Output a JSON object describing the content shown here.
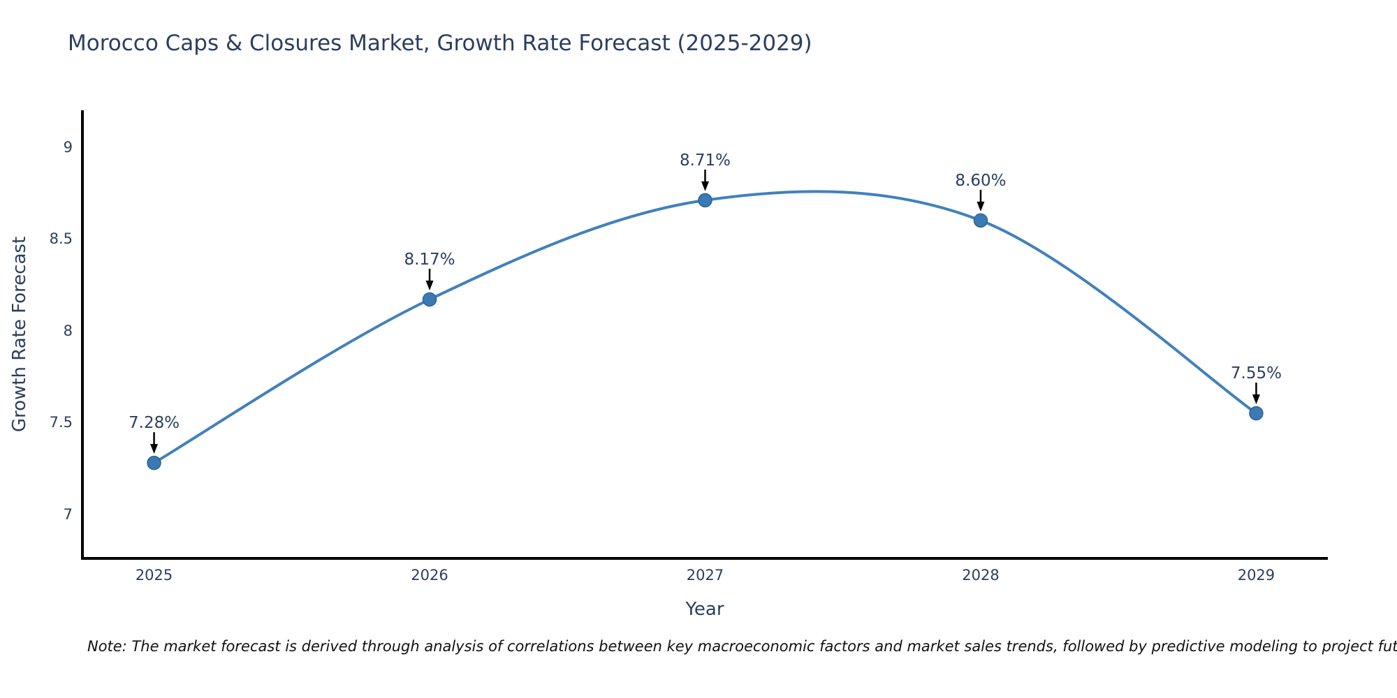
{
  "figure": {
    "note": "Note: The market forecast is derived through analysis of correlations between key macroeconomic factors and market sales trends, followed by predictive modeling to project future sales"
  },
  "chart_data": {
    "type": "line",
    "title": "Morocco Caps & Closures Market, Growth Rate Forecast (2025-2029)",
    "xlabel": "Year",
    "ylabel": "Growth Rate Forecast",
    "x": [
      2025,
      2026,
      2027,
      2028,
      2029
    ],
    "values": [
      7.28,
      8.17,
      8.71,
      8.6,
      7.55
    ],
    "point_labels": [
      "7.28%",
      "8.17%",
      "8.71%",
      "8.60%",
      "7.55%"
    ],
    "xtick_labels": [
      "2025",
      "2026",
      "2027",
      "2028",
      "2029"
    ],
    "yticks": [
      7,
      7.5,
      8,
      8.5,
      9
    ],
    "ytick_labels": [
      "7",
      "7.5",
      "8",
      "8.5",
      "9"
    ],
    "xlim": [
      2024.74,
      2029.26
    ],
    "ylim": [
      6.76,
      9.2
    ],
    "grid": false,
    "legend": "none",
    "smooth": true,
    "annotations_have_arrows": true,
    "colors": {
      "line": "#4181bc",
      "marker": "#3c7ab5",
      "marker_edge": "#2e6295",
      "axis": "#000000",
      "arrow": "#000000",
      "chart_text": "#2a3f5f",
      "note_text": "#111111",
      "background": "#ffffff"
    }
  }
}
